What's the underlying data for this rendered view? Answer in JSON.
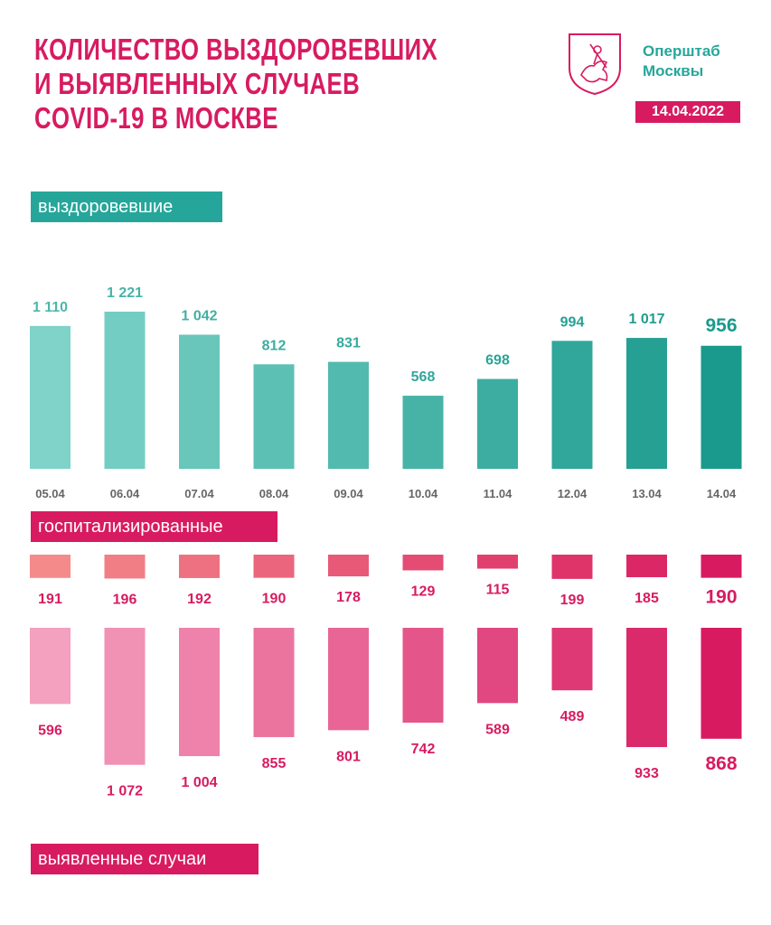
{
  "header": {
    "title_lines": [
      "КОЛИЧЕСТВО ВЫЗДОРОВЕВШИХ",
      "И ВЫЯВЛЕННЫХ СЛУЧАЕВ",
      "COVID-19 В МОСКВЕ"
    ],
    "brand_lines": [
      "Оперштаб",
      "Москвы"
    ],
    "date": "14.04.2022"
  },
  "sections": {
    "recovered_label": "выздоровевшие",
    "hospitalized_label": "госпитализированные",
    "cases_label": "выявленные случаи"
  },
  "colors": {
    "title": "#d81b60",
    "brand": "#26a69a",
    "recovered_from": "#7fd3c9",
    "recovered_to": "#1a9a8c",
    "hosp_from": "#f48a8a",
    "hosp_to": "#d81b60",
    "cases_from": "#f4a0bf",
    "cases_to": "#d81b60",
    "axis_text": "#666666"
  },
  "chart_data": {
    "type": "bar",
    "categories": [
      "05.04",
      "06.04",
      "07.04",
      "08.04",
      "09.04",
      "10.04",
      "11.04",
      "12.04",
      "13.04",
      "14.04"
    ],
    "series": [
      {
        "name": "выздоровевшие",
        "values": [
          1110,
          1221,
          1042,
          812,
          831,
          568,
          698,
          994,
          1017,
          956
        ],
        "labels": [
          "1 110",
          "1 221",
          "1 042",
          "812",
          "831",
          "568",
          "698",
          "994",
          "1 017",
          "956"
        ]
      },
      {
        "name": "госпитализированные",
        "values": [
          191,
          196,
          192,
          190,
          178,
          129,
          115,
          199,
          185,
          190
        ],
        "labels": [
          "191",
          "196",
          "192",
          "190",
          "178",
          "129",
          "115",
          "199",
          "185",
          "190"
        ]
      },
      {
        "name": "выявленные случаи",
        "values": [
          596,
          1072,
          1004,
          855,
          801,
          742,
          589,
          489,
          933,
          868
        ],
        "labels": [
          "596",
          "1 072",
          "1 004",
          "855",
          "801",
          "742",
          "589",
          "489",
          "933",
          "868"
        ]
      }
    ]
  }
}
